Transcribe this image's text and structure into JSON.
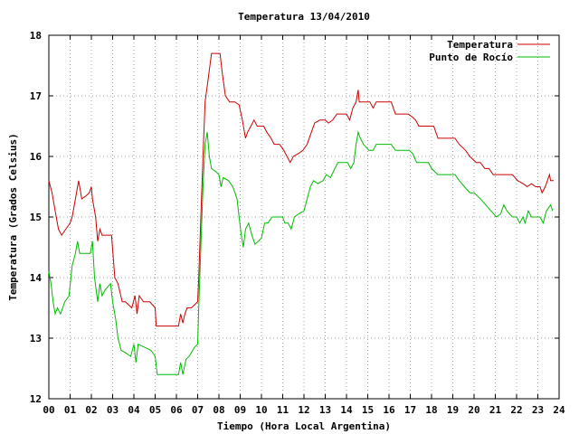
{
  "chart_data": {
    "type": "line",
    "title": "Temperatura 13/04/2010",
    "xlabel": "Tiempo (Hora Local Argentina)",
    "ylabel": "Temperatura (Grados Celsius)",
    "xlim": [
      0,
      24
    ],
    "ylim": [
      12,
      18
    ],
    "x_ticks": [
      "00",
      "01",
      "02",
      "03",
      "04",
      "05",
      "06",
      "07",
      "08",
      "09",
      "10",
      "11",
      "12",
      "13",
      "14",
      "15",
      "16",
      "17",
      "18",
      "19",
      "20",
      "21",
      "22",
      "23",
      "24"
    ],
    "y_ticks": [
      12,
      13,
      14,
      15,
      16,
      17,
      18
    ],
    "grid": true,
    "legend_position": "top-right",
    "series": [
      {
        "name": "Temperatura",
        "color": "#cc0000",
        "points": [
          [
            0.0,
            15.6
          ],
          [
            0.15,
            15.4
          ],
          [
            0.3,
            15.1
          ],
          [
            0.45,
            14.8
          ],
          [
            0.6,
            14.7
          ],
          [
            0.8,
            14.8
          ],
          [
            1.0,
            14.9
          ],
          [
            1.1,
            15.0
          ],
          [
            1.25,
            15.3
          ],
          [
            1.4,
            15.6
          ],
          [
            1.55,
            15.3
          ],
          [
            1.75,
            15.35
          ],
          [
            1.9,
            15.4
          ],
          [
            2.0,
            15.5
          ],
          [
            2.05,
            15.3
          ],
          [
            2.2,
            15.0
          ],
          [
            2.3,
            14.6
          ],
          [
            2.4,
            14.8
          ],
          [
            2.5,
            14.7
          ],
          [
            2.7,
            14.7
          ],
          [
            2.95,
            14.7
          ],
          [
            3.1,
            14.0
          ],
          [
            3.25,
            13.9
          ],
          [
            3.45,
            13.6
          ],
          [
            3.6,
            13.6
          ],
          [
            3.9,
            13.5
          ],
          [
            4.05,
            13.7
          ],
          [
            4.15,
            13.4
          ],
          [
            4.25,
            13.7
          ],
          [
            4.45,
            13.6
          ],
          [
            4.75,
            13.6
          ],
          [
            5.0,
            13.5
          ],
          [
            5.05,
            13.2
          ],
          [
            5.3,
            13.2
          ],
          [
            5.6,
            13.2
          ],
          [
            5.9,
            13.2
          ],
          [
            6.1,
            13.2
          ],
          [
            6.2,
            13.4
          ],
          [
            6.3,
            13.25
          ],
          [
            6.4,
            13.4
          ],
          [
            6.5,
            13.5
          ],
          [
            6.7,
            13.5
          ],
          [
            6.85,
            13.55
          ],
          [
            7.0,
            13.6
          ],
          [
            7.05,
            14.0
          ],
          [
            7.15,
            15.0
          ],
          [
            7.25,
            16.0
          ],
          [
            7.35,
            16.9
          ],
          [
            7.5,
            17.3
          ],
          [
            7.65,
            17.7
          ],
          [
            7.85,
            17.7
          ],
          [
            8.05,
            17.7
          ],
          [
            8.15,
            17.4
          ],
          [
            8.3,
            17.0
          ],
          [
            8.5,
            16.9
          ],
          [
            8.75,
            16.9
          ],
          [
            8.95,
            16.85
          ],
          [
            9.1,
            16.6
          ],
          [
            9.25,
            16.3
          ],
          [
            9.35,
            16.4
          ],
          [
            9.5,
            16.5
          ],
          [
            9.65,
            16.6
          ],
          [
            9.8,
            16.5
          ],
          [
            10.1,
            16.5
          ],
          [
            10.25,
            16.4
          ],
          [
            10.45,
            16.3
          ],
          [
            10.6,
            16.2
          ],
          [
            10.85,
            16.2
          ],
          [
            11.05,
            16.1
          ],
          [
            11.2,
            16.0
          ],
          [
            11.35,
            15.9
          ],
          [
            11.5,
            16.0
          ],
          [
            11.75,
            16.05
          ],
          [
            11.95,
            16.1
          ],
          [
            12.15,
            16.2
          ],
          [
            12.35,
            16.4
          ],
          [
            12.5,
            16.55
          ],
          [
            12.75,
            16.6
          ],
          [
            13.0,
            16.6
          ],
          [
            13.15,
            16.55
          ],
          [
            13.35,
            16.6
          ],
          [
            13.55,
            16.7
          ],
          [
            13.8,
            16.7
          ],
          [
            14.0,
            16.7
          ],
          [
            14.15,
            16.6
          ],
          [
            14.3,
            16.8
          ],
          [
            14.45,
            16.9
          ],
          [
            14.55,
            17.1
          ],
          [
            14.6,
            16.9
          ],
          [
            14.85,
            16.9
          ],
          [
            15.1,
            16.9
          ],
          [
            15.25,
            16.8
          ],
          [
            15.4,
            16.9
          ],
          [
            15.7,
            16.9
          ],
          [
            16.1,
            16.9
          ],
          [
            16.3,
            16.7
          ],
          [
            16.6,
            16.7
          ],
          [
            16.9,
            16.7
          ],
          [
            17.1,
            16.65
          ],
          [
            17.25,
            16.6
          ],
          [
            17.4,
            16.5
          ],
          [
            17.8,
            16.5
          ],
          [
            18.1,
            16.5
          ],
          [
            18.3,
            16.3
          ],
          [
            18.7,
            16.3
          ],
          [
            19.1,
            16.3
          ],
          [
            19.3,
            16.2
          ],
          [
            19.6,
            16.1
          ],
          [
            19.8,
            16.0
          ],
          [
            20.1,
            15.9
          ],
          [
            20.3,
            15.9
          ],
          [
            20.5,
            15.8
          ],
          [
            20.7,
            15.8
          ],
          [
            20.9,
            15.7
          ],
          [
            21.2,
            15.7
          ],
          [
            21.5,
            15.7
          ],
          [
            21.8,
            15.7
          ],
          [
            22.05,
            15.6
          ],
          [
            22.3,
            15.55
          ],
          [
            22.5,
            15.5
          ],
          [
            22.7,
            15.55
          ],
          [
            22.9,
            15.5
          ],
          [
            23.1,
            15.5
          ],
          [
            23.2,
            15.4
          ],
          [
            23.35,
            15.5
          ],
          [
            23.45,
            15.6
          ],
          [
            23.55,
            15.7
          ],
          [
            23.6,
            15.6
          ],
          [
            23.75,
            15.6
          ]
        ]
      },
      {
        "name": "Punto de Rocío",
        "color": "#00bb00",
        "points": [
          [
            0.0,
            14.1
          ],
          [
            0.1,
            13.9
          ],
          [
            0.2,
            13.6
          ],
          [
            0.3,
            13.4
          ],
          [
            0.4,
            13.5
          ],
          [
            0.55,
            13.4
          ],
          [
            0.75,
            13.6
          ],
          [
            0.95,
            13.7
          ],
          [
            1.1,
            14.2
          ],
          [
            1.25,
            14.4
          ],
          [
            1.35,
            14.6
          ],
          [
            1.45,
            14.4
          ],
          [
            1.7,
            14.4
          ],
          [
            1.95,
            14.4
          ],
          [
            2.05,
            14.6
          ],
          [
            2.15,
            14.0
          ],
          [
            2.3,
            13.6
          ],
          [
            2.4,
            13.9
          ],
          [
            2.5,
            13.7
          ],
          [
            2.65,
            13.8
          ],
          [
            2.9,
            13.9
          ],
          [
            3.0,
            13.6
          ],
          [
            3.15,
            13.3
          ],
          [
            3.25,
            13.0
          ],
          [
            3.4,
            12.8
          ],
          [
            3.65,
            12.75
          ],
          [
            3.85,
            12.7
          ],
          [
            4.0,
            12.9
          ],
          [
            4.1,
            12.6
          ],
          [
            4.2,
            12.9
          ],
          [
            4.5,
            12.85
          ],
          [
            4.8,
            12.8
          ],
          [
            5.0,
            12.7
          ],
          [
            5.1,
            12.4
          ],
          [
            5.4,
            12.4
          ],
          [
            5.8,
            12.4
          ],
          [
            6.1,
            12.4
          ],
          [
            6.2,
            12.6
          ],
          [
            6.3,
            12.4
          ],
          [
            6.45,
            12.65
          ],
          [
            6.6,
            12.7
          ],
          [
            6.85,
            12.85
          ],
          [
            7.0,
            12.9
          ],
          [
            7.05,
            13.5
          ],
          [
            7.15,
            14.5
          ],
          [
            7.25,
            15.5
          ],
          [
            7.35,
            16.2
          ],
          [
            7.45,
            16.4
          ],
          [
            7.55,
            16.0
          ],
          [
            7.65,
            15.8
          ],
          [
            7.85,
            15.75
          ],
          [
            8.0,
            15.7
          ],
          [
            8.1,
            15.5
          ],
          [
            8.2,
            15.65
          ],
          [
            8.45,
            15.6
          ],
          [
            8.65,
            15.5
          ],
          [
            8.85,
            15.3
          ],
          [
            8.95,
            15.0
          ],
          [
            9.05,
            14.7
          ],
          [
            9.15,
            14.5
          ],
          [
            9.25,
            14.8
          ],
          [
            9.4,
            14.9
          ],
          [
            9.55,
            14.7
          ],
          [
            9.7,
            14.55
          ],
          [
            9.85,
            14.6
          ],
          [
            10.0,
            14.65
          ],
          [
            10.15,
            14.9
          ],
          [
            10.3,
            14.9
          ],
          [
            10.5,
            15.0
          ],
          [
            10.75,
            15.0
          ],
          [
            11.0,
            15.0
          ],
          [
            11.1,
            14.9
          ],
          [
            11.25,
            14.9
          ],
          [
            11.4,
            14.8
          ],
          [
            11.55,
            15.0
          ],
          [
            11.75,
            15.05
          ],
          [
            12.0,
            15.1
          ],
          [
            12.15,
            15.3
          ],
          [
            12.3,
            15.5
          ],
          [
            12.45,
            15.6
          ],
          [
            12.65,
            15.55
          ],
          [
            12.9,
            15.6
          ],
          [
            13.05,
            15.7
          ],
          [
            13.25,
            15.65
          ],
          [
            13.45,
            15.8
          ],
          [
            13.6,
            15.9
          ],
          [
            13.85,
            15.9
          ],
          [
            14.05,
            15.9
          ],
          [
            14.2,
            15.8
          ],
          [
            14.35,
            15.9
          ],
          [
            14.45,
            16.2
          ],
          [
            14.55,
            16.4
          ],
          [
            14.65,
            16.3
          ],
          [
            14.8,
            16.2
          ],
          [
            15.05,
            16.1
          ],
          [
            15.25,
            16.1
          ],
          [
            15.4,
            16.2
          ],
          [
            15.75,
            16.2
          ],
          [
            16.1,
            16.2
          ],
          [
            16.3,
            16.1
          ],
          [
            16.6,
            16.1
          ],
          [
            16.95,
            16.1
          ],
          [
            17.1,
            16.05
          ],
          [
            17.3,
            15.9
          ],
          [
            17.55,
            15.9
          ],
          [
            17.85,
            15.9
          ],
          [
            18.0,
            15.8
          ],
          [
            18.3,
            15.7
          ],
          [
            18.7,
            15.7
          ],
          [
            19.1,
            15.7
          ],
          [
            19.3,
            15.6
          ],
          [
            19.55,
            15.5
          ],
          [
            19.8,
            15.4
          ],
          [
            20.0,
            15.4
          ],
          [
            20.3,
            15.3
          ],
          [
            20.55,
            15.2
          ],
          [
            20.8,
            15.1
          ],
          [
            21.05,
            15.0
          ],
          [
            21.25,
            15.05
          ],
          [
            21.4,
            15.2
          ],
          [
            21.55,
            15.1
          ],
          [
            21.8,
            15.0
          ],
          [
            22.0,
            15.0
          ],
          [
            22.15,
            14.9
          ],
          [
            22.3,
            15.0
          ],
          [
            22.4,
            14.9
          ],
          [
            22.55,
            15.1
          ],
          [
            22.7,
            15.0
          ],
          [
            22.9,
            15.0
          ],
          [
            23.1,
            15.0
          ],
          [
            23.25,
            14.9
          ],
          [
            23.4,
            15.1
          ],
          [
            23.5,
            15.15
          ],
          [
            23.6,
            15.2
          ],
          [
            23.7,
            15.1
          ]
        ]
      }
    ]
  }
}
